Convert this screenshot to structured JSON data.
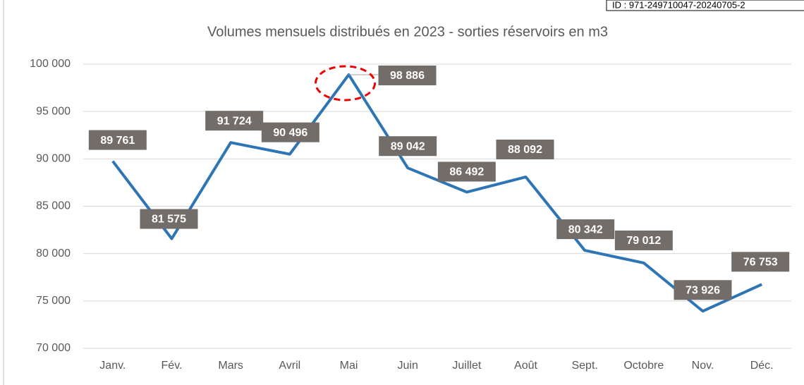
{
  "chart_data": {
    "type": "line",
    "title": "Volumes mensuels distribués en 2023  - sorties réservoirs en m3",
    "annotation": "ID : 971-249710047-20240705-2",
    "categories": [
      "Janv.",
      "Fév.",
      "Mars",
      "Avril",
      "Mai",
      "Juin",
      "Juillet",
      "Août",
      "Sept.",
      "Octobre",
      "Nov.",
      "Déc."
    ],
    "series": [
      {
        "name": "Volumes",
        "color": "#2e75b6",
        "values": [
          89761,
          81575,
          91724,
          90496,
          98886,
          89042,
          86492,
          88092,
          80342,
          79012,
          73926,
          76753
        ],
        "value_labels": [
          "89 761",
          "81 575",
          "91 724",
          "90 496",
          "98 886",
          "89 042",
          "86 492",
          "88 092",
          "80 342",
          "79 012",
          "73 926",
          "76 753"
        ]
      }
    ],
    "ylim": [
      70000,
      100000
    ],
    "yticks": [
      {
        "value": 70000,
        "label": "70 000"
      },
      {
        "value": 75000,
        "label": "75 000"
      },
      {
        "value": 80000,
        "label": "80 000"
      },
      {
        "value": 85000,
        "label": "85 000"
      },
      {
        "value": 90000,
        "label": "90 000"
      },
      {
        "value": 95000,
        "label": "95 000"
      },
      {
        "value": 100000,
        "label": "100 000"
      }
    ],
    "grid": true
  }
}
